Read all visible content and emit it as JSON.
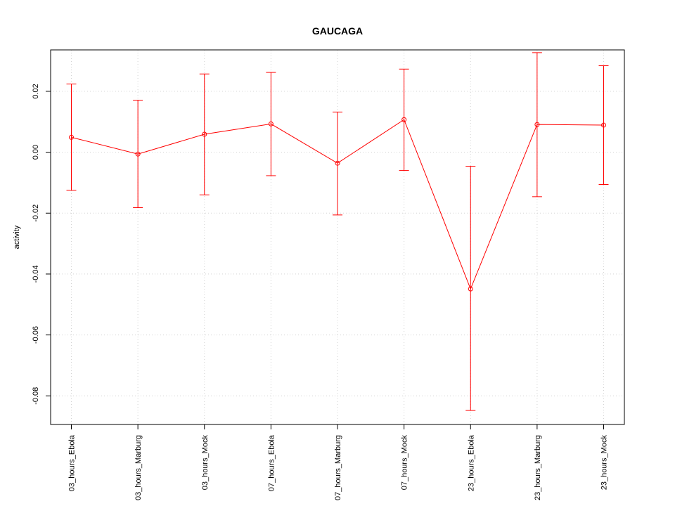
{
  "chart_data": {
    "type": "line",
    "title": "GAUCAGA",
    "xlabel": "",
    "ylabel": "activity",
    "categories": [
      "03_hours_Ebola",
      "03_hours_Marburg",
      "03_hours_Mock",
      "07_hours_Ebola",
      "07_hours_Marburg",
      "07_hours_Mock",
      "23_hours_Ebola",
      "23_hours_Marburg",
      "23_hours_Mock"
    ],
    "series": [
      {
        "values": [
          0.0049,
          -0.0006,
          0.0059,
          0.0093,
          -0.0036,
          0.0107,
          -0.0449,
          0.0091,
          0.0089
        ],
        "upper": [
          0.0224,
          0.0171,
          0.0257,
          0.0262,
          0.0132,
          0.0273,
          -0.0046,
          0.0327,
          0.0284
        ],
        "lower": [
          -0.0125,
          -0.0182,
          -0.014,
          -0.0077,
          -0.0206,
          -0.006,
          -0.0848,
          -0.0146,
          -0.0106
        ],
        "color": "#ff0000"
      }
    ],
    "yticks": [
      0.02,
      0.0,
      -0.02,
      -0.04,
      -0.06,
      -0.08
    ],
    "ytick_labels": [
      "0.02",
      "0.00",
      "-0.02",
      "-0.04",
      "-0.06",
      "-0.08"
    ],
    "ylim": [
      -0.0894,
      0.0336
    ],
    "grid": true,
    "grid_color": "#d3d3d3",
    "axis_color": "#000000"
  }
}
